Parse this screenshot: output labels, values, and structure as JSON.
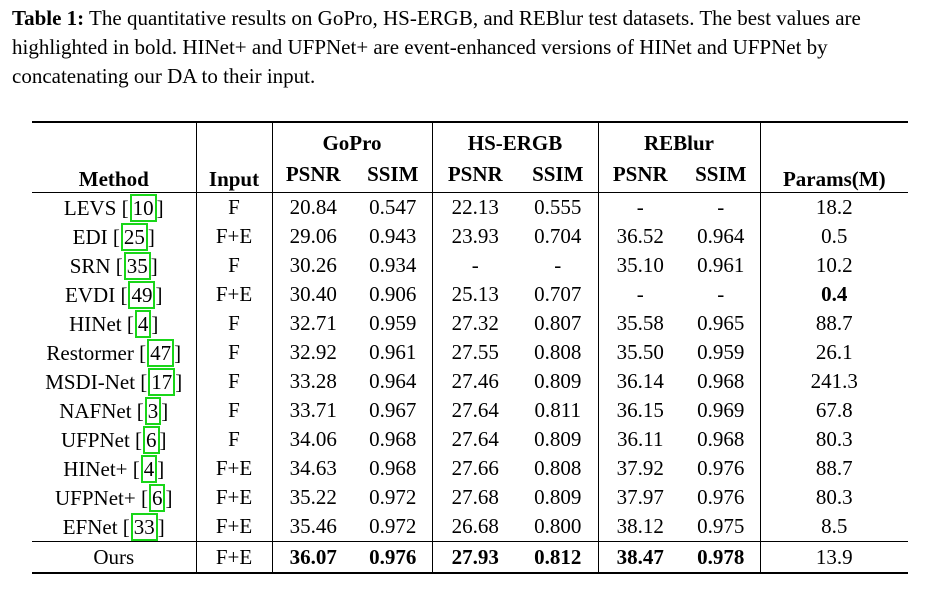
{
  "caption": {
    "label": "Table 1:",
    "text": " The quantitative results on GoPro, HS-ERGB, and REBlur test datasets. The best values are highlighted in bold. HINet+ and UFPNet+ are event-enhanced versions of HINet and UFPNet by concatenating our DA to their input."
  },
  "header": {
    "method": "Method",
    "input": "Input",
    "params": "Params(M)",
    "datasets": [
      "GoPro",
      "HS-ERGB",
      "REBlur"
    ],
    "psnr": "PSNR",
    "ssim": "SSIM"
  },
  "rows": [
    {
      "method": "LEVS",
      "cite": "10",
      "input": "F",
      "gopro_psnr": "20.84",
      "gopro_ssim": "0.547",
      "hs_psnr": "22.13",
      "hs_ssim": "0.555",
      "re_psnr": "-",
      "re_ssim": "-",
      "params": "18.2",
      "params_bold": false
    },
    {
      "method": "EDI",
      "cite": "25",
      "input": "F+E",
      "gopro_psnr": "29.06",
      "gopro_ssim": "0.943",
      "hs_psnr": "23.93",
      "hs_ssim": "0.704",
      "re_psnr": "36.52",
      "re_ssim": "0.964",
      "params": "0.5",
      "params_bold": false
    },
    {
      "method": "SRN",
      "cite": "35",
      "input": "F",
      "gopro_psnr": "30.26",
      "gopro_ssim": "0.934",
      "hs_psnr": "-",
      "hs_ssim": "-",
      "re_psnr": "35.10",
      "re_ssim": "0.961",
      "params": "10.2",
      "params_bold": false
    },
    {
      "method": "EVDI",
      "cite": "49",
      "input": "F+E",
      "gopro_psnr": "30.40",
      "gopro_ssim": "0.906",
      "hs_psnr": "25.13",
      "hs_ssim": "0.707",
      "re_psnr": "-",
      "re_ssim": "-",
      "params": "0.4",
      "params_bold": true
    },
    {
      "method": "HINet",
      "cite": "4",
      "input": "F",
      "gopro_psnr": "32.71",
      "gopro_ssim": "0.959",
      "hs_psnr": "27.32",
      "hs_ssim": "0.807",
      "re_psnr": "35.58",
      "re_ssim": "0.965",
      "params": "88.7",
      "params_bold": false
    },
    {
      "method": "Restormer",
      "cite": "47",
      "input": "F",
      "gopro_psnr": "32.92",
      "gopro_ssim": "0.961",
      "hs_psnr": "27.55",
      "hs_ssim": "0.808",
      "re_psnr": "35.50",
      "re_ssim": "0.959",
      "params": "26.1",
      "params_bold": false
    },
    {
      "method": "MSDI-Net",
      "cite": "17",
      "input": "F",
      "gopro_psnr": "33.28",
      "gopro_ssim": "0.964",
      "hs_psnr": "27.46",
      "hs_ssim": "0.809",
      "re_psnr": "36.14",
      "re_ssim": "0.968",
      "params": "241.3",
      "params_bold": false
    },
    {
      "method": "NAFNet",
      "cite": "3",
      "input": "F",
      "gopro_psnr": "33.71",
      "gopro_ssim": "0.967",
      "hs_psnr": "27.64",
      "hs_ssim": "0.811",
      "re_psnr": "36.15",
      "re_ssim": "0.969",
      "params": "67.8",
      "params_bold": false
    },
    {
      "method": "UFPNet",
      "cite": "6",
      "input": "F",
      "gopro_psnr": "34.06",
      "gopro_ssim": "0.968",
      "hs_psnr": "27.64",
      "hs_ssim": "0.809",
      "re_psnr": "36.11",
      "re_ssim": "0.968",
      "params": "80.3",
      "params_bold": false
    },
    {
      "method": "HINet+",
      "cite": "4",
      "input": "F+E",
      "gopro_psnr": "34.63",
      "gopro_ssim": "0.968",
      "hs_psnr": "27.66",
      "hs_ssim": "0.808",
      "re_psnr": "37.92",
      "re_ssim": "0.976",
      "params": "88.7",
      "params_bold": false
    },
    {
      "method": "UFPNet+",
      "cite": "6",
      "input": "F+E",
      "gopro_psnr": "35.22",
      "gopro_ssim": "0.972",
      "hs_psnr": "27.68",
      "hs_ssim": "0.809",
      "re_psnr": "37.97",
      "re_ssim": "0.976",
      "params": "80.3",
      "params_bold": false
    },
    {
      "method": "EFNet",
      "cite": "33",
      "input": "F+E",
      "gopro_psnr": "35.46",
      "gopro_ssim": "0.972",
      "hs_psnr": "26.68",
      "hs_ssim": "0.800",
      "re_psnr": "38.12",
      "re_ssim": "0.975",
      "params": "8.5",
      "params_bold": false
    }
  ],
  "ours": {
    "method": "Ours",
    "input": "F+E",
    "gopro_psnr": "36.07",
    "gopro_ssim": "0.976",
    "hs_psnr": "27.93",
    "hs_ssim": "0.812",
    "re_psnr": "38.47",
    "re_ssim": "0.978",
    "params": "13.9"
  },
  "cite_color": "#19d619"
}
